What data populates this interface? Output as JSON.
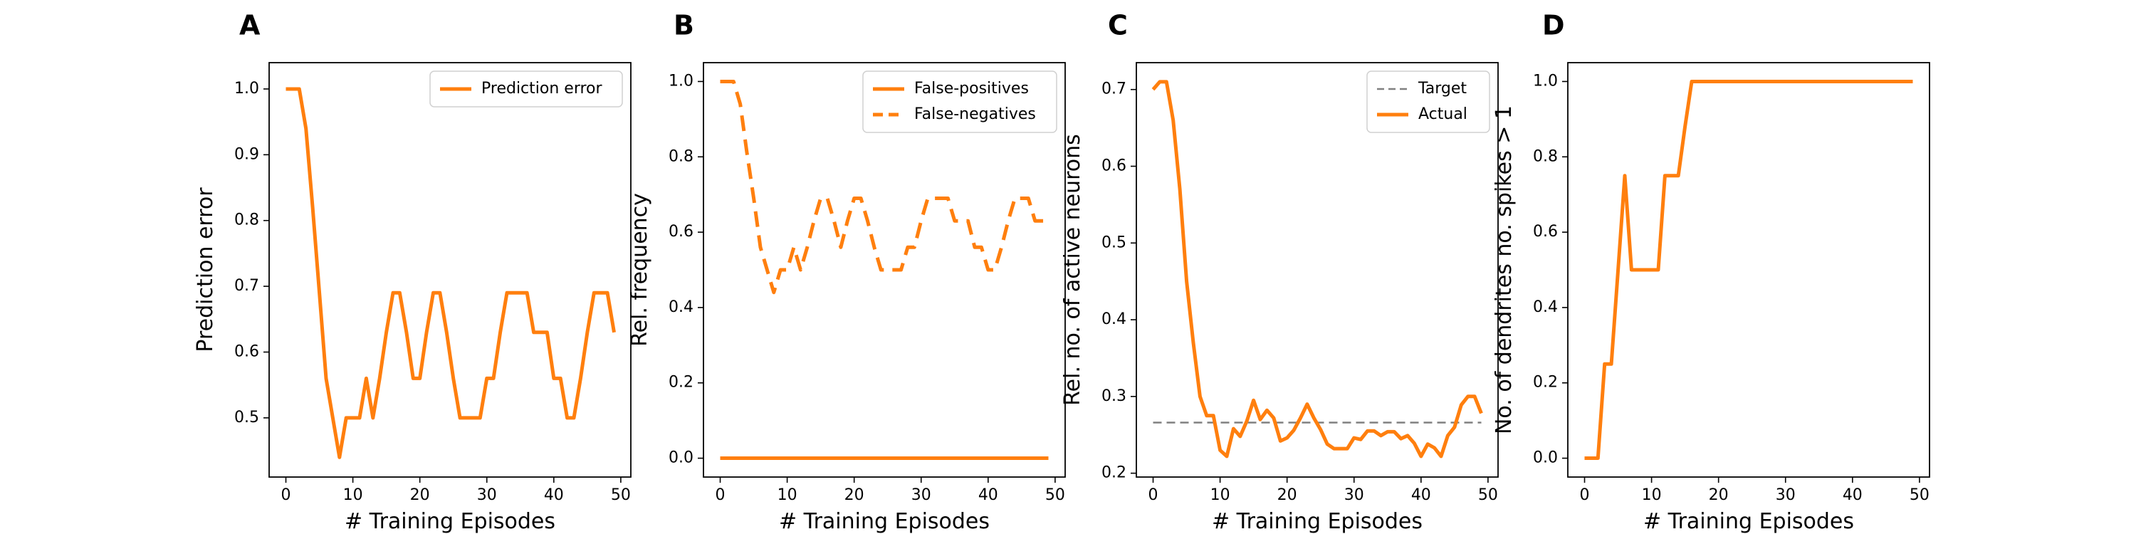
{
  "chart_data": [
    {
      "type": "line",
      "panel": "A",
      "xlabel": "# Training Episodes",
      "ylabel": "Prediction error",
      "xlim": [
        -2.5,
        51.5
      ],
      "ylim": [
        0.41,
        1.04
      ],
      "xticks": [
        0,
        10,
        20,
        30,
        40,
        50
      ],
      "yticks": [
        0.5,
        0.6,
        0.7,
        0.8,
        0.9,
        1.0
      ],
      "ytick_labels": [
        "0.5",
        "0.6",
        "0.7",
        "0.8",
        "0.9",
        "1.0"
      ],
      "legend": "top-right",
      "series": [
        {
          "name": "Prediction error",
          "color": "#ff7f0e",
          "dash": "solid",
          "x": [
            0,
            1,
            2,
            3,
            4,
            5,
            6,
            7,
            8,
            9,
            10,
            11,
            12,
            13,
            14,
            15,
            16,
            17,
            18,
            19,
            20,
            21,
            22,
            23,
            24,
            25,
            26,
            27,
            28,
            29,
            30,
            31,
            32,
            33,
            34,
            35,
            36,
            37,
            38,
            39,
            40,
            41,
            42,
            43,
            44,
            45,
            46,
            47,
            48,
            49
          ],
          "y": [
            1.0,
            1.0,
            1.0,
            0.94,
            0.82,
            0.69,
            0.56,
            0.5,
            0.44,
            0.5,
            0.5,
            0.5,
            0.56,
            0.5,
            0.56,
            0.63,
            0.69,
            0.69,
            0.63,
            0.56,
            0.56,
            0.63,
            0.69,
            0.69,
            0.63,
            0.56,
            0.5,
            0.5,
            0.5,
            0.5,
            0.56,
            0.56,
            0.63,
            0.69,
            0.69,
            0.69,
            0.69,
            0.63,
            0.63,
            0.63,
            0.56,
            0.56,
            0.5,
            0.5,
            0.56,
            0.63,
            0.69,
            0.69,
            0.69,
            0.63
          ]
        }
      ]
    },
    {
      "type": "line",
      "panel": "B",
      "xlabel": "# Training Episodes",
      "ylabel": "Rel. frequency",
      "xlim": [
        -2.5,
        51.5
      ],
      "ylim": [
        -0.05,
        1.05
      ],
      "xticks": [
        0,
        10,
        20,
        30,
        40,
        50
      ],
      "yticks": [
        0.0,
        0.2,
        0.4,
        0.6,
        0.8,
        1.0
      ],
      "ytick_labels": [
        "0.0",
        "0.2",
        "0.4",
        "0.6",
        "0.8",
        "1.0"
      ],
      "legend": "top-right",
      "series": [
        {
          "name": "False-positives",
          "color": "#ff7f0e",
          "dash": "solid",
          "x": [
            0,
            49
          ],
          "y": [
            0.0,
            0.0
          ]
        },
        {
          "name": "False-negatives",
          "color": "#ff7f0e",
          "dash": "dashed",
          "x": [
            0,
            1,
            2,
            3,
            4,
            5,
            6,
            7,
            8,
            9,
            10,
            11,
            12,
            13,
            14,
            15,
            16,
            17,
            18,
            19,
            20,
            21,
            22,
            23,
            24,
            25,
            26,
            27,
            28,
            29,
            30,
            31,
            32,
            33,
            34,
            35,
            36,
            37,
            38,
            39,
            40,
            41,
            42,
            43,
            44,
            45,
            46,
            47,
            48,
            49
          ],
          "y": [
            1.0,
            1.0,
            1.0,
            0.94,
            0.81,
            0.69,
            0.56,
            0.5,
            0.44,
            0.5,
            0.5,
            0.56,
            0.5,
            0.56,
            0.63,
            0.69,
            0.69,
            0.63,
            0.56,
            0.63,
            0.69,
            0.69,
            0.63,
            0.56,
            0.5,
            0.5,
            0.5,
            0.5,
            0.56,
            0.56,
            0.63,
            0.69,
            0.69,
            0.69,
            0.69,
            0.63,
            0.63,
            0.63,
            0.56,
            0.56,
            0.5,
            0.5,
            0.56,
            0.63,
            0.69,
            0.69,
            0.69,
            0.63,
            0.63,
            0.63
          ]
        }
      ]
    },
    {
      "type": "line",
      "panel": "C",
      "xlabel": "# Training Episodes",
      "ylabel": "Rel. no. of active neurons",
      "xlim": [
        -2.5,
        51.5
      ],
      "ylim": [
        0.195,
        0.735
      ],
      "xticks": [
        0,
        10,
        20,
        30,
        40,
        50
      ],
      "yticks": [
        0.2,
        0.3,
        0.4,
        0.5,
        0.6,
        0.7
      ],
      "ytick_labels": [
        "0.2",
        "0.3",
        "0.4",
        "0.5",
        "0.6",
        "0.7"
      ],
      "legend": "top-right",
      "series": [
        {
          "name": "Target",
          "color": "#808080",
          "dash": "dashed",
          "x": [
            0,
            49
          ],
          "y": [
            0.266,
            0.266
          ]
        },
        {
          "name": "Actual",
          "color": "#ff7f0e",
          "dash": "solid",
          "x": [
            0,
            1,
            2,
            3,
            4,
            5,
            6,
            7,
            8,
            9,
            10,
            11,
            12,
            13,
            14,
            15,
            16,
            17,
            18,
            19,
            20,
            21,
            22,
            23,
            24,
            25,
            26,
            27,
            28,
            29,
            30,
            31,
            32,
            33,
            34,
            35,
            36,
            37,
            38,
            39,
            40,
            41,
            42,
            43,
            44,
            45,
            46,
            47,
            48,
            49
          ],
          "y": [
            0.7,
            0.71,
            0.71,
            0.66,
            0.57,
            0.45,
            0.37,
            0.3,
            0.275,
            0.275,
            0.23,
            0.222,
            0.258,
            0.248,
            0.268,
            0.295,
            0.27,
            0.282,
            0.272,
            0.242,
            0.246,
            0.256,
            0.272,
            0.29,
            0.272,
            0.257,
            0.238,
            0.232,
            0.232,
            0.232,
            0.246,
            0.244,
            0.255,
            0.255,
            0.249,
            0.254,
            0.254,
            0.245,
            0.249,
            0.239,
            0.222,
            0.238,
            0.233,
            0.222,
            0.249,
            0.26,
            0.289,
            0.3,
            0.3,
            0.278
          ]
        }
      ]
    },
    {
      "type": "line",
      "panel": "D",
      "xlabel": "# Training Episodes",
      "ylabel": "No. of dendrites no. spikes > 1",
      "xlim": [
        -2.5,
        51.5
      ],
      "ylim": [
        -0.05,
        1.05
      ],
      "xticks": [
        0,
        10,
        20,
        30,
        40,
        50
      ],
      "yticks": [
        0.0,
        0.2,
        0.4,
        0.6,
        0.8,
        1.0
      ],
      "ytick_labels": [
        "0.0",
        "0.2",
        "0.4",
        "0.6",
        "0.8",
        "1.0"
      ],
      "legend": "none",
      "series": [
        {
          "color": "#ff7f0e",
          "dash": "solid",
          "x": [
            0,
            1,
            2,
            3,
            4,
            5,
            6,
            7,
            8,
            9,
            10,
            11,
            12,
            13,
            14,
            15,
            16,
            17,
            49
          ],
          "y": [
            0.0,
            0.0,
            0.0,
            0.25,
            0.25,
            0.5,
            0.75,
            0.5,
            0.5,
            0.5,
            0.5,
            0.5,
            0.75,
            0.75,
            0.75,
            0.88,
            1.0,
            1.0,
            1.0
          ]
        }
      ]
    }
  ]
}
